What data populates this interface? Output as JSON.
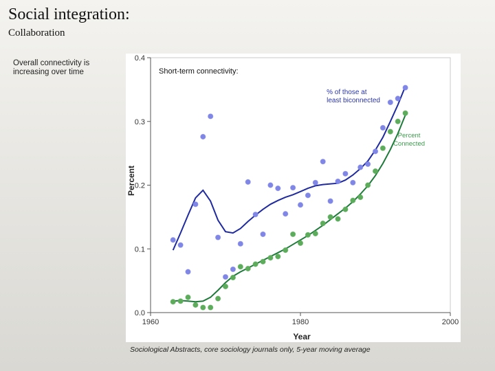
{
  "slide": {
    "title": "Social integration:",
    "subtitle": "Collaboration",
    "side_note": "Overall connectivity is increasing over time",
    "caption": "Sociological Abstracts, core sociology journals only, 5-year moving average"
  },
  "colors": {
    "blue_points": "#7f86e6",
    "blue_line": "#1f2a9e",
    "green_points": "#5cac5c",
    "green_line": "#1e7a3a",
    "blue_label": "#2a35a8",
    "green_label": "#3c9a4c"
  },
  "chart_data": {
    "type": "scatter",
    "title": "Short-term connectivity:",
    "xlabel": "Year",
    "ylabel": "Percent",
    "xlim": [
      1960,
      2000
    ],
    "ylim": [
      0,
      0.4
    ],
    "xticks": [
      "1960",
      "1980",
      "2000"
    ],
    "yticks": [
      "0.0",
      "0.1",
      "0.2",
      "0.3",
      "0.4"
    ],
    "series": [
      {
        "name": "% of those at least biconnected",
        "label_lines": [
          "% of those at",
          "least biconnected"
        ],
        "points": [
          [
            1963.0,
            0.114
          ],
          [
            1964.0,
            0.106
          ],
          [
            1965.0,
            0.064
          ],
          [
            1966.0,
            0.17
          ],
          [
            1967.0,
            0.276
          ],
          [
            1968.0,
            0.308
          ],
          [
            1969.0,
            0.118
          ],
          [
            1970.0,
            0.056
          ],
          [
            1971.0,
            0.068
          ],
          [
            1972.0,
            0.108
          ],
          [
            1973.0,
            0.205
          ],
          [
            1974.0,
            0.154
          ],
          [
            1975.0,
            0.123
          ],
          [
            1976.0,
            0.2
          ],
          [
            1977.0,
            0.195
          ],
          [
            1978.0,
            0.155
          ],
          [
            1979.0,
            0.196
          ],
          [
            1980.0,
            0.169
          ],
          [
            1981.0,
            0.184
          ],
          [
            1982.0,
            0.204
          ],
          [
            1983.0,
            0.237
          ],
          [
            1984.0,
            0.175
          ],
          [
            1985.0,
            0.206
          ],
          [
            1986.0,
            0.218
          ],
          [
            1987.0,
            0.204
          ],
          [
            1988.0,
            0.228
          ],
          [
            1989.0,
            0.233
          ],
          [
            1990.0,
            0.253
          ],
          [
            1991.0,
            0.29
          ],
          [
            1992.0,
            0.33
          ],
          [
            1993.0,
            0.336
          ],
          [
            1994.0,
            0.353
          ]
        ],
        "smooth": [
          [
            1963.0,
            0.098
          ],
          [
            1964.0,
            0.125
          ],
          [
            1965.0,
            0.153
          ],
          [
            1966.0,
            0.18
          ],
          [
            1967.0,
            0.192
          ],
          [
            1968.0,
            0.175
          ],
          [
            1969.0,
            0.145
          ],
          [
            1970.0,
            0.127
          ],
          [
            1971.0,
            0.125
          ],
          [
            1972.0,
            0.132
          ],
          [
            1973.0,
            0.143
          ],
          [
            1974.0,
            0.153
          ],
          [
            1975.0,
            0.162
          ],
          [
            1976.0,
            0.17
          ],
          [
            1977.0,
            0.176
          ],
          [
            1978.0,
            0.181
          ],
          [
            1979.0,
            0.185
          ],
          [
            1980.0,
            0.19
          ],
          [
            1981.0,
            0.195
          ],
          [
            1982.0,
            0.199
          ],
          [
            1983.0,
            0.201
          ],
          [
            1984.0,
            0.202
          ],
          [
            1985.0,
            0.203
          ],
          [
            1986.0,
            0.208
          ],
          [
            1987.0,
            0.216
          ],
          [
            1988.0,
            0.226
          ],
          [
            1989.0,
            0.238
          ],
          [
            1990.0,
            0.255
          ],
          [
            1991.0,
            0.275
          ],
          [
            1992.0,
            0.3
          ],
          [
            1993.0,
            0.326
          ],
          [
            1994.0,
            0.355
          ]
        ]
      },
      {
        "name": "Percent Connected",
        "label_lines": [
          "Percent",
          "Connected"
        ],
        "points": [
          [
            1963.0,
            0.017
          ],
          [
            1964.0,
            0.018
          ],
          [
            1965.0,
            0.024
          ],
          [
            1966.0,
            0.012
          ],
          [
            1967.0,
            0.008
          ],
          [
            1968.0,
            0.008
          ],
          [
            1969.0,
            0.022
          ],
          [
            1970.0,
            0.041
          ],
          [
            1971.0,
            0.055
          ],
          [
            1972.0,
            0.072
          ],
          [
            1973.0,
            0.069
          ],
          [
            1974.0,
            0.076
          ],
          [
            1975.0,
            0.08
          ],
          [
            1976.0,
            0.086
          ],
          [
            1977.0,
            0.088
          ],
          [
            1978.0,
            0.098
          ],
          [
            1979.0,
            0.123
          ],
          [
            1980.0,
            0.109
          ],
          [
            1981.0,
            0.122
          ],
          [
            1982.0,
            0.124
          ],
          [
            1983.0,
            0.14
          ],
          [
            1984.0,
            0.15
          ],
          [
            1985.0,
            0.147
          ],
          [
            1986.0,
            0.162
          ],
          [
            1987.0,
            0.176
          ],
          [
            1988.0,
            0.181
          ],
          [
            1989.0,
            0.2
          ],
          [
            1990.0,
            0.222
          ],
          [
            1991.0,
            0.258
          ],
          [
            1992.0,
            0.284
          ],
          [
            1993.0,
            0.3
          ],
          [
            1994.0,
            0.313
          ]
        ],
        "smooth": [
          [
            1963.0,
            0.018
          ],
          [
            1964.0,
            0.019
          ],
          [
            1965.0,
            0.018
          ],
          [
            1966.0,
            0.017
          ],
          [
            1967.0,
            0.018
          ],
          [
            1968.0,
            0.024
          ],
          [
            1969.0,
            0.035
          ],
          [
            1970.0,
            0.047
          ],
          [
            1971.0,
            0.057
          ],
          [
            1972.0,
            0.064
          ],
          [
            1973.0,
            0.07
          ],
          [
            1974.0,
            0.076
          ],
          [
            1975.0,
            0.082
          ],
          [
            1976.0,
            0.088
          ],
          [
            1977.0,
            0.094
          ],
          [
            1978.0,
            0.1
          ],
          [
            1979.0,
            0.107
          ],
          [
            1980.0,
            0.114
          ],
          [
            1981.0,
            0.121
          ],
          [
            1982.0,
            0.129
          ],
          [
            1983.0,
            0.137
          ],
          [
            1984.0,
            0.146
          ],
          [
            1985.0,
            0.155
          ],
          [
            1986.0,
            0.164
          ],
          [
            1987.0,
            0.174
          ],
          [
            1988.0,
            0.186
          ],
          [
            1989.0,
            0.199
          ],
          [
            1990.0,
            0.215
          ],
          [
            1991.0,
            0.234
          ],
          [
            1992.0,
            0.256
          ],
          [
            1993.0,
            0.281
          ],
          [
            1994.0,
            0.31
          ]
        ]
      }
    ]
  }
}
